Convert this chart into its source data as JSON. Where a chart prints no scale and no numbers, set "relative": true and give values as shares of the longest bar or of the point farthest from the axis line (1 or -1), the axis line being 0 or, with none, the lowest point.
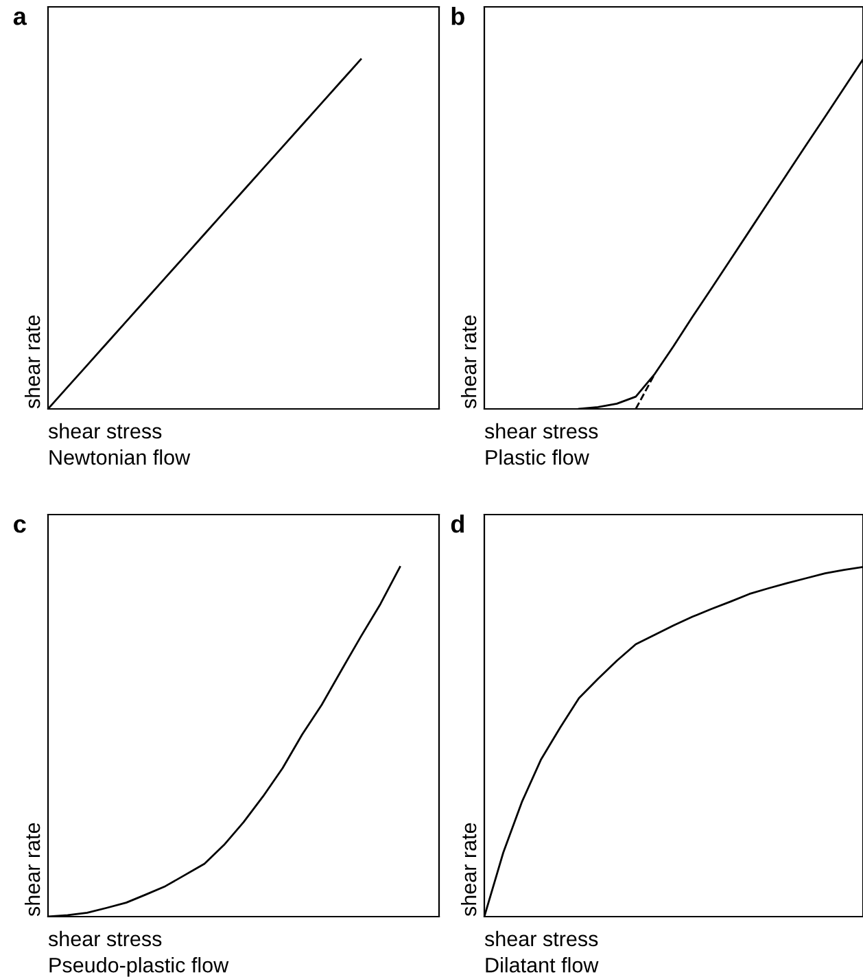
{
  "chart_data": [
    {
      "type": "line",
      "title": "a",
      "xlabel": "shear stress",
      "ylabel": "shear rate",
      "annotations": [
        "Newtonian flow"
      ],
      "relative": true,
      "line_style": "solid",
      "categories": [
        null,
        null,
        null,
        null,
        null,
        null,
        null,
        null,
        null,
        null,
        null,
        null,
        null,
        null,
        null,
        null,
        null,
        null,
        null,
        null,
        null
      ],
      "series": [
        {
          "color": "#000000",
          "values": [
            0,
            0.0625,
            0.125,
            0.1875,
            0.25,
            0.3125,
            0.375,
            0.4375,
            0.5,
            0.5625,
            0.625,
            0.6875,
            0.75,
            0.8125,
            0.875,
            0.9375,
            1,
            null,
            null,
            null,
            null
          ]
        }
      ]
    },
    {
      "type": "line",
      "title": "b",
      "xlabel": "shear stress",
      "ylabel": "shear rate",
      "annotations": [
        "Plastic flow"
      ],
      "relative": true,
      "line_style": "solid",
      "categories": [
        null,
        null,
        null,
        null,
        null,
        null,
        null,
        null,
        null,
        null,
        null,
        null,
        null,
        null,
        null,
        null,
        null,
        null,
        null,
        null,
        null
      ],
      "series": [
        {
          "color": "#000000",
          "values": [
            null,
            null,
            null,
            null,
            null,
            0,
            0.005,
            0.015,
            0.035,
            0.1,
            0.18,
            0.264,
            0.345,
            0.427,
            0.509,
            0.591,
            0.673,
            0.755,
            0.836,
            0.918,
            1
          ]
        },
        {
          "color": "#000000",
          "line_style": "dashed",
          "values": [
            null,
            null,
            null,
            null,
            null,
            null,
            null,
            null,
            0,
            0.1,
            null,
            null,
            null,
            null,
            null,
            null,
            null,
            null,
            null,
            null,
            null
          ]
        }
      ]
    },
    {
      "type": "line",
      "title": "c",
      "xlabel": "shear stress",
      "ylabel": "shear rate",
      "annotations": [
        "Pseudo-plastic flow"
      ],
      "relative": true,
      "line_style": "solid",
      "categories": [
        null,
        null,
        null,
        null,
        null,
        null,
        null,
        null,
        null,
        null,
        null,
        null,
        null,
        null,
        null,
        null,
        null,
        null,
        null,
        null,
        null
      ],
      "series": [
        {
          "color": "#000000",
          "values": [
            0,
            0.004,
            0.011,
            0.025,
            0.04,
            0.063,
            0.087,
            0.119,
            0.151,
            0.205,
            0.27,
            0.344,
            0.425,
            0.521,
            0.606,
            0.704,
            0.801,
            0.894,
            1,
            null,
            null
          ]
        }
      ]
    },
    {
      "type": "line",
      "title": "d",
      "xlabel": "shear stress",
      "ylabel": "shear rate",
      "annotations": [
        "Dilatant flow"
      ],
      "relative": true,
      "line_style": "solid",
      "categories": [
        null,
        null,
        null,
        null,
        null,
        null,
        null,
        null,
        null,
        null,
        null,
        null,
        null,
        null,
        null,
        null,
        null,
        null,
        null,
        null,
        null
      ],
      "series": [
        {
          "color": "#000000",
          "values": [
            0,
            0.183,
            0.33,
            0.45,
            0.54,
            0.625,
            0.68,
            0.732,
            0.779,
            0.806,
            0.833,
            0.858,
            0.88,
            0.901,
            0.923,
            0.939,
            0.954,
            0.968,
            0.982,
            0.992,
            1
          ]
        }
      ]
    }
  ]
}
